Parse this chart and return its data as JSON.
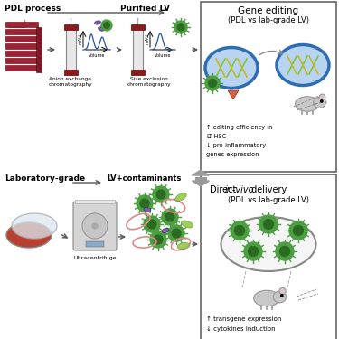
{
  "bg_color": "#ffffff",
  "text_pdl_process": "PDL process",
  "text_purified_lv": "Purified LV",
  "text_anion": "Anion exchange\nchromatography",
  "text_sec": "Size exclusion\nchromatography",
  "text_lab_grade": "Laboratory-grade",
  "text_lv_contaminants": "LV+contaminants",
  "text_ultracentrifuge": "Ultracentrifuge",
  "text_gene_editing_title": "Gene editing",
  "text_gene_editing_sub": "(PDL vs lab-grade LV)",
  "text_editing1": "↑ editing efficiency in",
  "text_editing2": "LT-HSC",
  "text_editing3": "↓ pro-inflammatory",
  "text_editing4": "genes expression",
  "text_direct_title": "Direct ",
  "text_direct_italic": "in-vivo",
  "text_direct_rest": " delivery",
  "text_direct_sub": "(PDL vs lab-grade LV)",
  "text_transgene": "↑ transgene expression",
  "text_cytokines": "↓ cytokines induction",
  "green_color": "#4d9e42",
  "green_dark": "#2a6b21",
  "green_light": "#85c46a",
  "purple_color": "#7b5ea7",
  "pink_color": "#e08888",
  "lime_color": "#8dc63f",
  "blue_cell": "#2e6db4",
  "blue_cell_fill": "#b8d4f0",
  "red_connector": "#8b1a1a",
  "col_body": "#e8e8e8",
  "mau_line": "#2a4fa0",
  "arrow_gray": "#888888",
  "thick_arrow": "#9a9a9a",
  "mouse_gray": "#c8c8c8",
  "mouse_edge": "#999999"
}
